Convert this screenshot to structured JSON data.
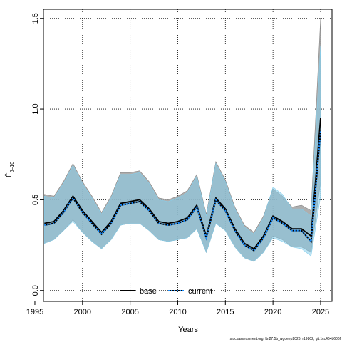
{
  "chart_data": {
    "type": "line",
    "xlabel": "Years",
    "ylabel": "F̄",
    "ylabel_sub": "6–10",
    "xlim": [
      1995.9,
      2026.2
    ],
    "ylim": [
      -0.06,
      1.55
    ],
    "xticks": [
      1995,
      2000,
      2005,
      2010,
      2015,
      2020,
      2025
    ],
    "yticks": [
      0.0,
      0.5,
      1.0,
      1.5
    ],
    "ytick_labels": [
      "0.0",
      "0.5",
      "1.0",
      "1.5"
    ],
    "grid": true,
    "legend_position": "bottom-center",
    "footer": "stockassessment.org, ltn27.5b_wgdeep2026, r19802, git:1cc464b606f",
    "colors": {
      "base_band": "#a0a0a0",
      "current_band": "#87ceeb",
      "line": "#000000",
      "current_dots": "#1e90ff"
    },
    "series": [
      {
        "name": "base",
        "x": [
          1996,
          1997,
          1998,
          1999,
          2000,
          2001,
          2002,
          2003,
          2004,
          2005,
          2006,
          2007,
          2008,
          2009,
          2010,
          2011,
          2012,
          2013,
          2014,
          2015,
          2016,
          2017,
          2018,
          2019,
          2020,
          2021,
          2022,
          2023,
          2024,
          2025
        ],
        "values": [
          0.37,
          0.38,
          0.44,
          0.52,
          0.44,
          0.38,
          0.32,
          0.38,
          0.48,
          0.49,
          0.5,
          0.45,
          0.38,
          0.37,
          0.38,
          0.4,
          0.47,
          0.3,
          0.51,
          0.45,
          0.34,
          0.26,
          0.23,
          0.3,
          0.41,
          0.38,
          0.34,
          0.34,
          0.3,
          0.95
        ],
        "lower": [
          0.26,
          0.28,
          0.33,
          0.39,
          0.32,
          0.27,
          0.23,
          0.28,
          0.36,
          0.37,
          0.37,
          0.33,
          0.28,
          0.27,
          0.28,
          0.29,
          0.34,
          0.21,
          0.37,
          0.33,
          0.24,
          0.18,
          0.16,
          0.21,
          0.3,
          0.28,
          0.24,
          0.24,
          0.21,
          0.6
        ],
        "upper": [
          0.53,
          0.52,
          0.6,
          0.7,
          0.6,
          0.52,
          0.43,
          0.52,
          0.65,
          0.65,
          0.66,
          0.6,
          0.51,
          0.5,
          0.52,
          0.55,
          0.64,
          0.42,
          0.71,
          0.61,
          0.46,
          0.36,
          0.32,
          0.41,
          0.56,
          0.52,
          0.46,
          0.47,
          0.44,
          1.5
        ]
      },
      {
        "name": "current",
        "x": [
          1996,
          1997,
          1998,
          1999,
          2000,
          2001,
          2002,
          2003,
          2004,
          2005,
          2006,
          2007,
          2008,
          2009,
          2010,
          2011,
          2012,
          2013,
          2014,
          2015,
          2016,
          2017,
          2018,
          2019,
          2020,
          2021,
          2022,
          2023,
          2024,
          2025
        ],
        "values": [
          0.36,
          0.37,
          0.43,
          0.51,
          0.43,
          0.37,
          0.31,
          0.37,
          0.47,
          0.48,
          0.49,
          0.44,
          0.37,
          0.36,
          0.37,
          0.39,
          0.46,
          0.29,
          0.5,
          0.44,
          0.33,
          0.25,
          0.22,
          0.29,
          0.4,
          0.37,
          0.33,
          0.33,
          0.27,
          0.88
        ],
        "lower": [
          0.26,
          0.28,
          0.33,
          0.38,
          0.32,
          0.27,
          0.23,
          0.28,
          0.36,
          0.37,
          0.37,
          0.33,
          0.28,
          0.27,
          0.28,
          0.29,
          0.34,
          0.21,
          0.37,
          0.33,
          0.24,
          0.18,
          0.16,
          0.21,
          0.29,
          0.27,
          0.24,
          0.23,
          0.19,
          0.52
        ],
        "upper": [
          0.52,
          0.51,
          0.59,
          0.69,
          0.59,
          0.51,
          0.42,
          0.51,
          0.64,
          0.64,
          0.65,
          0.59,
          0.5,
          0.49,
          0.51,
          0.54,
          0.63,
          0.41,
          0.7,
          0.6,
          0.45,
          0.35,
          0.31,
          0.4,
          0.57,
          0.53,
          0.45,
          0.45,
          0.41,
          1.35
        ]
      }
    ]
  }
}
